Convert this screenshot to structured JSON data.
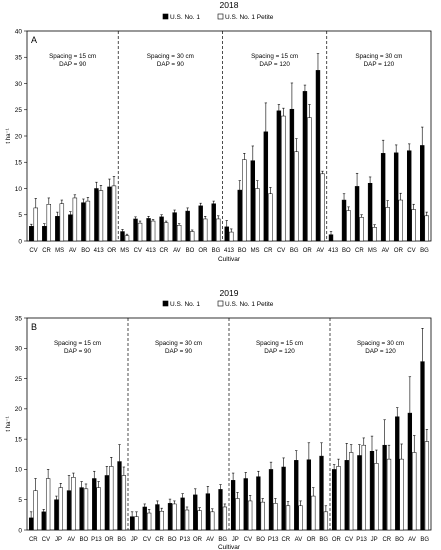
{
  "chart_data": [
    {
      "type": "bar",
      "panel_label": "A",
      "title": "2018",
      "ylabel": "t ha⁻¹",
      "xlabel": "Cultivar",
      "ylim": [
        0,
        40
      ],
      "yticks": [
        0,
        5,
        10,
        15,
        20,
        25,
        30,
        35,
        40
      ],
      "grid": false,
      "legend_position": "top-center",
      "colors": {
        "series1": "#000000",
        "series2": "#ffffff",
        "edge": "#000000"
      },
      "categories": [
        "CV",
        "CR",
        "MS",
        "AV",
        "BO",
        "413",
        "OR",
        "MS",
        "CV",
        "413",
        "CR",
        "AV",
        "BO",
        "OR",
        "BG",
        "413",
        "BO",
        "MS",
        "CR",
        "CV",
        "BG",
        "OR",
        "AV",
        "413",
        "BO",
        "CR",
        "MS",
        "AV",
        "OR",
        "CV",
        "BG"
      ],
      "series": [
        {
          "name": "U.S. No. 1",
          "values": [
            2.8,
            2.8,
            4.7,
            5.0,
            7.3,
            10.0,
            10.3,
            1.8,
            4.2,
            4.3,
            4.6,
            5.4,
            5.7,
            6.7,
            7.1,
            2.7,
            9.7,
            15.3,
            20.8,
            24.8,
            25.1,
            28.5,
            32.5,
            1.2,
            7.8,
            10.4,
            11.0,
            16.7,
            16.8,
            17.2,
            18.2
          ],
          "errors": [
            0.4,
            0.5,
            0.8,
            0.6,
            0.7,
            1.2,
            1.5,
            0.4,
            0.4,
            0.4,
            0.4,
            0.5,
            0.6,
            0.5,
            0.5,
            1.2,
            1.8,
            2.8,
            5.5,
            1.2,
            5.0,
            1.2,
            3.2,
            0.6,
            1.2,
            2.5,
            1.2,
            2.5,
            1.5,
            1.3,
            3.5
          ]
        },
        {
          "name": "U.S. No. 1 Petite",
          "values": [
            6.3,
            7.0,
            7.1,
            8.2,
            7.6,
            9.6,
            10.5,
            1.0,
            3.4,
            3.8,
            3.5,
            3.0,
            1.8,
            4.2,
            4.2,
            1.7,
            15.5,
            10.0,
            9.0,
            23.8,
            17.0,
            23.5,
            12.8,
            0.0,
            5.8,
            4.5,
            2.6,
            6.4,
            7.8,
            6.0,
            4.8
          ]
        }
      ],
      "series_errors_2": [
        1.8,
        1.2,
        0.7,
        0.6,
        0.7,
        1.0,
        1.8,
        0.3,
        0.4,
        0.3,
        0.3,
        0.3,
        0.3,
        0.5,
        0.6,
        0.6,
        1.2,
        1.5,
        1.2,
        1.5,
        2.5,
        2.5,
        0.5,
        0.0,
        0.7,
        0.5,
        0.5,
        1.3,
        1.3,
        1.0,
        0.7
      ],
      "groups": [
        {
          "lines": [
            "Spacing = 15 cm",
            "DAP = 90"
          ],
          "start": 0,
          "end": 6
        },
        {
          "lines": [
            "Spacing = 30 cm",
            "DAP = 90"
          ],
          "start": 7,
          "end": 14
        },
        {
          "lines": [
            "Spacing = 15 cm",
            "DAP = 120"
          ],
          "start": 15,
          "end": 22
        },
        {
          "lines": [
            "Spacing = 30 cm",
            "DAP = 120"
          ],
          "start": 23,
          "end": 30
        }
      ]
    },
    {
      "type": "bar",
      "panel_label": "B",
      "title": "2019",
      "ylabel": "t ha⁻¹",
      "xlabel": "Cultivar",
      "ylim": [
        0,
        35
      ],
      "yticks": [
        0,
        5,
        10,
        15,
        20,
        25,
        30,
        35
      ],
      "grid": false,
      "legend_position": "top-center",
      "colors": {
        "series1": "#000000",
        "series2": "#ffffff",
        "edge": "#000000"
      },
      "categories": [
        "CR",
        "CV",
        "JP",
        "AV",
        "BO",
        "P13",
        "OR",
        "BG",
        "JP",
        "CV",
        "CR",
        "BO",
        "P13",
        "OR",
        "AV",
        "BG",
        "JP",
        "CV",
        "BO",
        "P13",
        "CR",
        "AV",
        "OR",
        "BG",
        "OR",
        "CV",
        "P13",
        "JP",
        "CR",
        "BO",
        "AV",
        "BG"
      ],
      "series": [
        {
          "name": "U.S. No. 1",
          "values": [
            2.0,
            3.0,
            5.0,
            6.5,
            7.0,
            8.5,
            9.0,
            11.3,
            2.2,
            3.8,
            4.2,
            4.4,
            5.3,
            5.8,
            6.0,
            6.7,
            8.2,
            8.5,
            8.8,
            10.0,
            10.4,
            11.5,
            11.6,
            12.2,
            10.0,
            11.5,
            12.3,
            13.0,
            14.0,
            18.7,
            19.3,
            27.8
          ],
          "errors": [
            1.0,
            0.4,
            0.6,
            2.5,
            1.0,
            1.2,
            1.5,
            2.8,
            0.8,
            0.5,
            0.6,
            0.7,
            0.7,
            1.0,
            1.2,
            0.8,
            1.2,
            1.0,
            0.9,
            1.2,
            1.5,
            1.6,
            2.8,
            2.2,
            0.8,
            2.8,
            1.8,
            2.5,
            4.2,
            1.5,
            6.0,
            5.5
          ]
        },
        {
          "name": "U.S. No. 1 Petite",
          "values": [
            6.5,
            8.5,
            7.0,
            8.7,
            6.8,
            7.0,
            10.5,
            9.0,
            2.2,
            2.8,
            3.1,
            4.3,
            3.3,
            3.2,
            3.0,
            3.8,
            5.2,
            4.8,
            4.6,
            4.4,
            4.0,
            4.0,
            5.6,
            3.0,
            10.5,
            12.8,
            14.0,
            11.0,
            11.7,
            11.7,
            12.8,
            14.6
          ]
        }
      ],
      "series_errors_2": [
        2.0,
        1.5,
        0.7,
        0.7,
        0.8,
        1.0,
        1.5,
        1.4,
        0.8,
        0.6,
        0.5,
        0.5,
        0.5,
        0.5,
        0.5,
        0.5,
        1.0,
        0.9,
        0.6,
        0.8,
        0.7,
        0.8,
        1.4,
        1.0,
        1.2,
        1.3,
        1.2,
        2.2,
        2.3,
        2.5,
        2.8,
        2.0
      ],
      "groups": [
        {
          "lines": [
            "Spacing = 15 cm",
            "DAP = 90"
          ],
          "start": 0,
          "end": 7
        },
        {
          "lines": [
            "Spacing = 30 cm",
            "DAP = 90"
          ],
          "start": 8,
          "end": 15
        },
        {
          "lines": [
            "Spacing = 15 cm",
            "DAP = 120"
          ],
          "start": 16,
          "end": 23
        },
        {
          "lines": [
            "Spacing = 30 cm",
            "DAP = 120"
          ],
          "start": 24,
          "end": 31
        }
      ]
    }
  ]
}
